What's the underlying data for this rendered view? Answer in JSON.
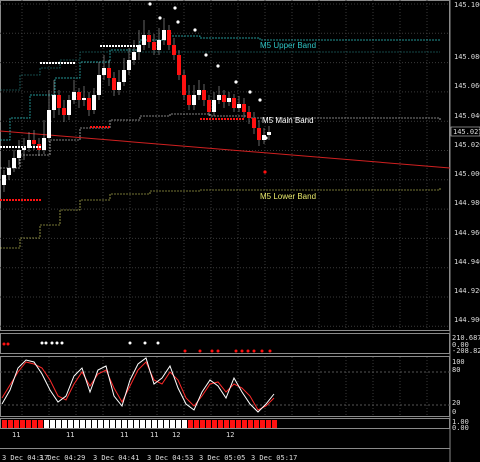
{
  "price_axis": {
    "ticks": [
      "145.100",
      "145.080",
      "145.060",
      "145.040",
      "145.020",
      "145.000",
      "144.980",
      "144.960",
      "144.940",
      "144.920",
      "144.900"
    ],
    "current_price": "145.027"
  },
  "bands": {
    "upper_label": "M5 Upper Band",
    "main_label": "M5 Main Band",
    "lower_label": "M5 Lower Band",
    "upper_color": "#2ec4c4",
    "main_color": "#ffffff",
    "lower_color": "#e8e86a"
  },
  "indicator1": {
    "top_value": "210.6872",
    "zero_value": "0.00",
    "bottom_value": "-208.8229"
  },
  "stochastic": {
    "ticks": [
      "100",
      "80",
      "20",
      "0"
    ]
  },
  "indicator3": {
    "ticks": [
      "1.00",
      "0.00"
    ]
  },
  "time_axis": {
    "labels": [
      "3 Dec 04:17",
      "3 Dec 04:29",
      "3 Dec 04:41",
      "3 Dec 04:53",
      "3 Dec 05:05",
      "3 Dec 05:17"
    ]
  },
  "hour_markers": [
    "11",
    "11",
    "11",
    "11",
    "12",
    "12"
  ],
  "colors": {
    "bull": "#ffffff",
    "bear": "#ff1111",
    "grid": "#3a3a3a",
    "trend_line": "#d02020",
    "stoch_main": "#ffffff",
    "stoch_signal": "#ff2a2a"
  }
}
